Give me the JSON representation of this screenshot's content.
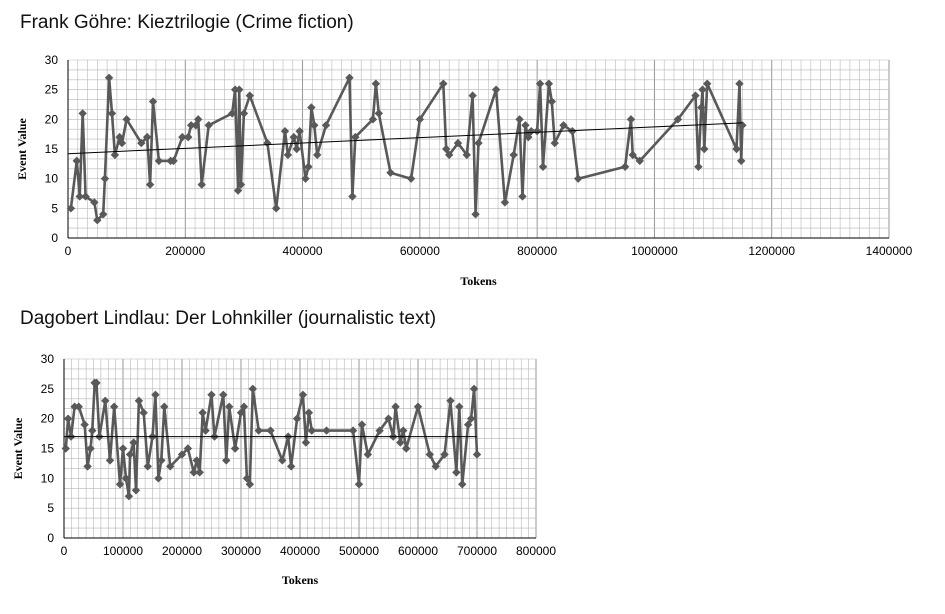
{
  "chart_data": [
    {
      "type": "line",
      "title": "Frank Göhre: Kieztrilogie (Crime fiction)",
      "xlabel": "Tokens",
      "ylabel": "Event Value",
      "xlim": [
        0,
        1400000
      ],
      "ylim": [
        0,
        30
      ],
      "xticks": [
        0,
        200000,
        400000,
        600000,
        800000,
        1000000,
        1200000,
        1400000
      ],
      "xtick_labels": [
        "0",
        "200000",
        "400000",
        "600000",
        "800000",
        "1000000",
        "1200000",
        "1400000"
      ],
      "yticks": [
        0,
        5,
        10,
        15,
        20,
        25,
        30
      ],
      "ytick_labels": [
        "0",
        "5",
        "10",
        "15",
        "20",
        "25",
        "30"
      ],
      "grid": true,
      "colors": {
        "series": "#595959",
        "trend": "#000000",
        "grid": "#b8b8b8"
      },
      "series": [
        {
          "x": [
            5000,
            15000,
            20000,
            25000,
            30000,
            45000,
            50000,
            60000,
            63000,
            70000,
            75000,
            80000,
            88000,
            92000,
            100000,
            125000,
            135000,
            140000,
            145000,
            155000,
            175000,
            180000,
            195000,
            205000,
            210000,
            218000,
            222000,
            228000,
            240000,
            280000,
            285000,
            290000,
            292000,
            295000,
            300000,
            310000,
            340000,
            355000,
            370000,
            375000,
            385000,
            390000,
            395000,
            405000,
            410000,
            415000,
            420000,
            425000,
            440000,
            480000,
            485000,
            490000,
            520000,
            525000,
            530000,
            550000,
            585000,
            600000,
            640000,
            645000,
            650000,
            665000,
            680000,
            690000,
            695000,
            700000,
            730000,
            745000,
            760000,
            770000,
            775000,
            780000,
            785000,
            790000,
            800000,
            805000,
            810000,
            820000,
            825000,
            830000,
            845000,
            860000,
            870000,
            950000,
            960000,
            963000,
            975000,
            1040000,
            1070000,
            1075000,
            1080000,
            1082000,
            1085000,
            1090000,
            1140000,
            1145000,
            1148000,
            1150000
          ],
          "y": [
            5,
            13,
            7,
            21,
            7,
            6,
            3,
            4,
            10,
            27,
            21,
            14,
            17,
            16,
            20,
            16,
            17,
            9,
            23,
            13,
            13,
            13,
            17,
            17,
            19,
            19,
            20,
            9,
            19,
            21,
            25,
            8,
            25,
            9,
            21,
            24,
            16,
            5,
            18,
            14,
            17,
            15,
            18,
            10,
            12,
            22,
            19,
            14,
            19,
            27,
            7,
            17,
            20,
            26,
            21,
            11,
            10,
            20,
            26,
            15,
            14,
            16,
            14,
            24,
            4,
            16,
            25,
            6,
            14,
            20,
            7,
            19,
            17,
            18,
            18,
            26,
            12,
            26,
            23,
            16,
            19,
            18,
            10,
            12,
            20,
            14,
            13,
            20,
            24,
            12,
            22,
            25,
            15,
            26,
            15,
            26,
            13,
            19
          ]
        }
      ],
      "trendline": {
        "x": [
          0,
          1150000
        ],
        "y": [
          14.2,
          19.4
        ]
      }
    },
    {
      "type": "line",
      "title": "Dagobert Lindlau: Der Lohnkiller (journalistic text)",
      "xlabel": "Tokens",
      "ylabel": "Event Value",
      "xlim": [
        0,
        800000
      ],
      "ylim": [
        0,
        30
      ],
      "xticks": [
        0,
        100000,
        200000,
        300000,
        400000,
        500000,
        600000,
        700000,
        800000
      ],
      "xtick_labels": [
        "0",
        "100000",
        "200000",
        "300000",
        "400000",
        "500000",
        "600000",
        "700000",
        "800000"
      ],
      "yticks": [
        0,
        5,
        10,
        15,
        20,
        25,
        30
      ],
      "ytick_labels": [
        "0",
        "5",
        "10",
        "15",
        "20",
        "25",
        "30"
      ],
      "grid": true,
      "colors": {
        "series": "#595959",
        "trend": "#000000",
        "grid": "#b8b8b8"
      },
      "series": [
        {
          "x": [
            3000,
            7000,
            12000,
            18000,
            25000,
            35000,
            40000,
            45000,
            48000,
            52000,
            55000,
            60000,
            70000,
            78000,
            85000,
            95000,
            100000,
            105000,
            110000,
            112000,
            118000,
            122000,
            127000,
            135000,
            142000,
            150000,
            155000,
            160000,
            165000,
            170000,
            180000,
            200000,
            210000,
            220000,
            225000,
            230000,
            235000,
            240000,
            250000,
            255000,
            270000,
            275000,
            280000,
            290000,
            300000,
            305000,
            310000,
            315000,
            320000,
            330000,
            350000,
            370000,
            380000,
            385000,
            395000,
            405000,
            410000,
            415000,
            420000,
            445000,
            490000,
            500000,
            505000,
            515000,
            535000,
            550000,
            558000,
            562000,
            570000,
            575000,
            580000,
            600000,
            620000,
            630000,
            645000,
            655000,
            665000,
            670000,
            675000,
            685000,
            690000,
            695000,
            700000
          ],
          "y": [
            15,
            20,
            17,
            22,
            22,
            19,
            12,
            15,
            18,
            26,
            26,
            17,
            23,
            13,
            22,
            9,
            15,
            10,
            7,
            14,
            16,
            8,
            23,
            21,
            12,
            17,
            24,
            10,
            13,
            22,
            12,
            14,
            15,
            11,
            13,
            11,
            21,
            18,
            24,
            17,
            24,
            13,
            22,
            15,
            21,
            22,
            10,
            9,
            25,
            18,
            18,
            13,
            17,
            12,
            20,
            24,
            16,
            21,
            18,
            18,
            18,
            9,
            19,
            14,
            18,
            20,
            17,
            22,
            16,
            18,
            15,
            22,
            14,
            12,
            14,
            23,
            11,
            22,
            9,
            19,
            20,
            25,
            14
          ]
        }
      ],
      "trendline": {
        "x": [
          0,
          700000
        ],
        "y": [
          17,
          17
        ]
      }
    }
  ]
}
